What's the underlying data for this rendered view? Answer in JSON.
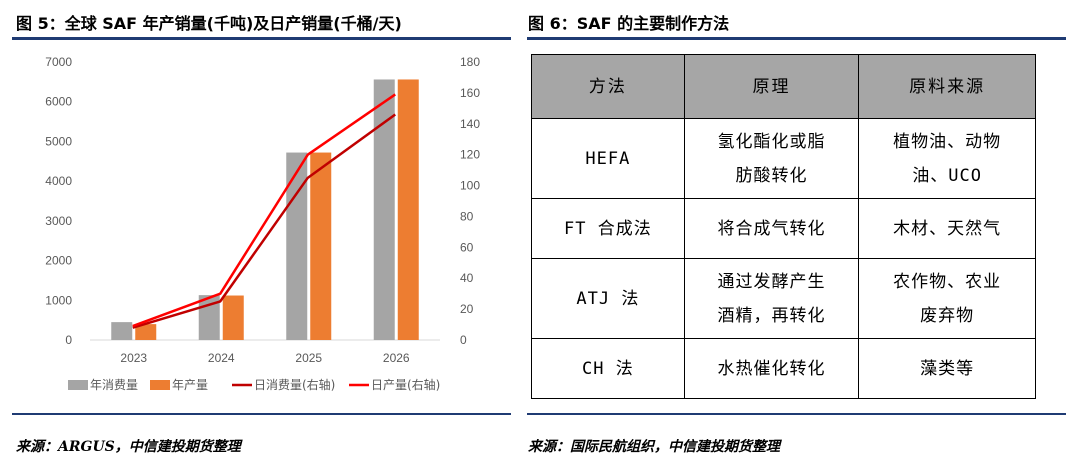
{
  "left_figure": {
    "title": "图 5：全球 SAF 年产销量(千吨)及日产销量(千桶/天)",
    "source": "来源：ARGUS，中信建投期货整理"
  },
  "right_figure": {
    "title": "图 6：SAF 的主要制作方法",
    "source": "来源：国际民航组织，中信建投期货整理",
    "table": {
      "headers": [
        "方法",
        "原理",
        "原料来源"
      ],
      "rows": [
        [
          [
            "HEFA"
          ],
          [
            "氢化酯化或脂",
            "肪酸转化"
          ],
          [
            "植物油、动物",
            "油、UCO"
          ]
        ],
        [
          [
            "FT 合成法"
          ],
          [
            "将合成气转化"
          ],
          [
            "木材、天然气"
          ]
        ],
        [
          [
            "ATJ 法"
          ],
          [
            "通过发酵产生",
            "酒精，再转化"
          ],
          [
            "农作物、农业",
            "废弃物"
          ]
        ],
        [
          [
            "CH 法"
          ],
          [
            "水热催化转化"
          ],
          [
            "藻类等"
          ]
        ]
      ]
    }
  },
  "chart_data": {
    "type": "bar",
    "categories": [
      "2023",
      "2024",
      "2025",
      "2026"
    ],
    "ylim": [
      0,
      7000
    ],
    "yticks": [
      0,
      1000,
      2000,
      3000,
      4000,
      5000,
      6000,
      7000
    ],
    "y2lim": [
      0,
      180
    ],
    "y2ticks": [
      0,
      20,
      40,
      60,
      80,
      100,
      120,
      140,
      160,
      180
    ],
    "legend_position": "bottom",
    "grid": false,
    "series": [
      {
        "name": "年消费量",
        "type": "bar",
        "axis": "left",
        "color": "#a5a5a5",
        "values": [
          450,
          1130,
          4720,
          6560
        ]
      },
      {
        "name": "年产量",
        "type": "bar",
        "axis": "left",
        "color": "#ed7d31",
        "values": [
          400,
          1120,
          4720,
          6560
        ]
      },
      {
        "name": "日消费量(右轴)",
        "type": "line",
        "axis": "right",
        "color": "#c00000",
        "values": [
          8,
          25,
          105,
          146
        ]
      },
      {
        "name": "日产量(右轴)",
        "type": "line",
        "axis": "right",
        "color": "#ff0000",
        "values": [
          9,
          30,
          120,
          159
        ]
      }
    ]
  }
}
